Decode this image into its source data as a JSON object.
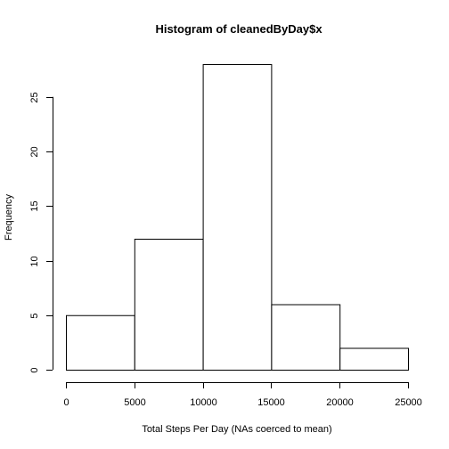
{
  "chart_data": {
    "type": "bar",
    "title": "Histogram of cleanedByDay$x",
    "xlabel": "Total Steps Per Day (NAs coerced to mean)",
    "ylabel": "Frequency",
    "bins": [
      {
        "from": 0,
        "to": 5000,
        "count": 5
      },
      {
        "from": 5000,
        "to": 10000,
        "count": 12
      },
      {
        "from": 10000,
        "to": 15000,
        "count": 28
      },
      {
        "from": 15000,
        "to": 20000,
        "count": 6
      },
      {
        "from": 20000,
        "to": 25000,
        "count": 2
      }
    ],
    "xlim": [
      0,
      25000
    ],
    "ylim": [
      0,
      28
    ],
    "x_ticks": [
      0,
      5000,
      10000,
      15000,
      20000,
      25000
    ],
    "y_ticks": [
      0,
      5,
      10,
      15,
      20,
      25
    ],
    "grid": false,
    "legend": "none"
  }
}
